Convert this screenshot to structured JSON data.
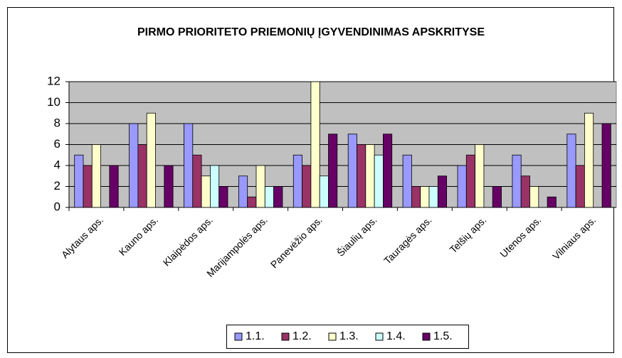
{
  "chart_data": {
    "type": "bar",
    "title": "PIRMO PRIORITETO PRIEMONIŲ ĮGYVENDINIMAS APSKRITYSE",
    "categories": [
      "Alytaus aps.",
      "Kauno aps.",
      "Klaipėdos aps.",
      "Marijampolės aps.",
      "Panevėžio aps.",
      "Šiaulių aps.",
      "Tauragės aps.",
      "Telšių aps.",
      "Utenos aps.",
      "Vilniaus aps."
    ],
    "series": [
      {
        "name": "1.1.",
        "color": "#9999ff",
        "values": [
          5,
          8,
          8,
          3,
          5,
          7,
          5,
          4,
          5,
          7
        ]
      },
      {
        "name": "1.2.",
        "color": "#993366",
        "values": [
          4,
          6,
          5,
          1,
          4,
          6,
          2,
          5,
          3,
          4
        ]
      },
      {
        "name": "1.3.",
        "color": "#ffffcc",
        "values": [
          6,
          9,
          3,
          4,
          12,
          6,
          2,
          6,
          2,
          9
        ]
      },
      {
        "name": "1.4.",
        "color": "#ccffff",
        "values": [
          0,
          0,
          4,
          2,
          3,
          5,
          2,
          0,
          0,
          0
        ]
      },
      {
        "name": "1.5.",
        "color": "#660066",
        "values": [
          4,
          4,
          2,
          2,
          7,
          7,
          3,
          2,
          1,
          8
        ]
      }
    ],
    "ylim": [
      0,
      12
    ],
    "yticks": [
      0,
      2,
      4,
      6,
      8,
      10,
      12
    ],
    "grid": true,
    "plot_background": "#c0c0c0",
    "legend": "bottom"
  }
}
